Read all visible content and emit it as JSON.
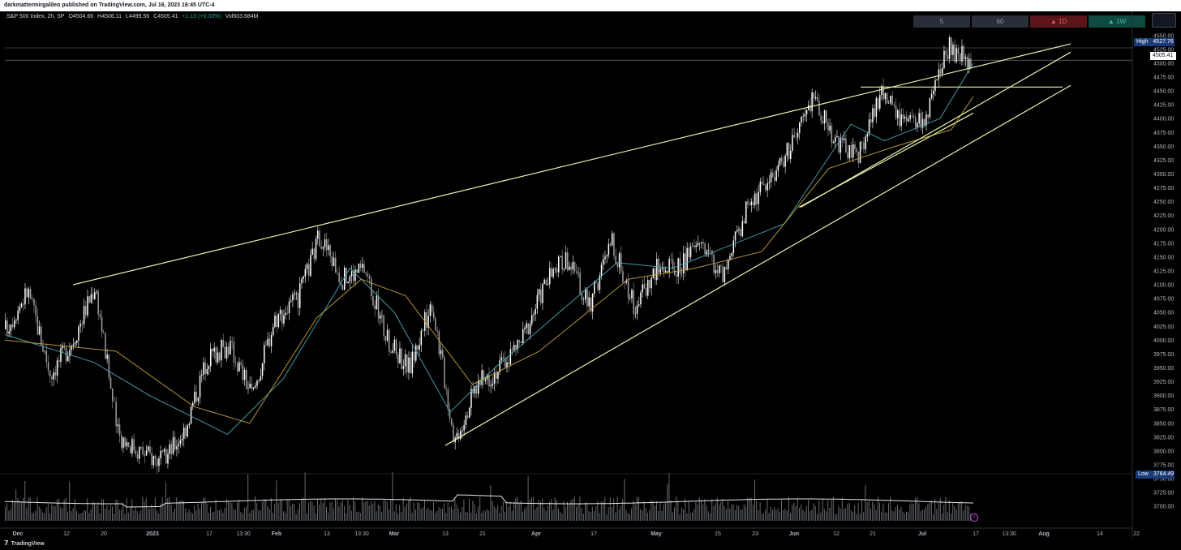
{
  "publisher_line": "darkmattermirgalileo published on TradingView.com, Jul 16, 2023 16:45 UTC-4",
  "legend": {
    "symbol": "S&P 500 Index, 2h, SP",
    "open": "O4504.66",
    "high": "H4506.11",
    "low": "L4499.56",
    "close": "C4505.41",
    "change": "+1.13 (+0.03%)",
    "volume": "Vol603.684M"
  },
  "timeframes": [
    {
      "label": "5"
    },
    {
      "label": "60"
    },
    {
      "label": "▲ 1D"
    },
    {
      "label": "▲ 1W"
    }
  ],
  "price_tags": {
    "high_label": "High",
    "high_value": "4527.76",
    "last_value": "4505.41",
    "low_label": "Low",
    "low_value": "3764.49"
  },
  "footer": {
    "logo_icon": "tradingview-logo-icon",
    "brand": "TradingView"
  },
  "colors": {
    "background": "#000000",
    "candle_up": "#ffffff",
    "candle_down": "#9e9e9e",
    "ema_fast": "#4aa8b8",
    "ema_slow": "#c9a33a",
    "trendline": "#e6f5a8",
    "volume": "#ffffff"
  },
  "chart_data": {
    "type": "candlestick",
    "title": "S&P 500 Index, 2h, SP",
    "ylim": [
      3690,
      4560
    ],
    "y_ticks": [
      4550,
      4525,
      4500,
      4475,
      4450,
      4425,
      4400,
      4375,
      4350,
      4325,
      4300,
      4275,
      4250,
      4225,
      4200,
      4175,
      4150,
      4125,
      4100,
      4075,
      4050,
      4025,
      4000,
      3975,
      3950,
      3925,
      3900,
      3875,
      3850,
      3825,
      3800,
      3775,
      3750,
      3725,
      3700
    ],
    "x_ticks": [
      "Dec",
      "12",
      "20",
      "2023",
      "17",
      "13:30",
      "Feb",
      "13",
      "13:30",
      "Mar",
      "13",
      "21",
      "Apr",
      "17",
      "May",
      "15",
      "23",
      "Jun",
      "12",
      "21",
      "Jul",
      "17",
      "13:30",
      "Aug",
      "14",
      "22"
    ],
    "path_points": [
      [
        "Dec",
        4020
      ],
      [
        "Dec 1",
        4090
      ],
      [
        "Dec 6",
        3940
      ],
      [
        "Dec 12",
        4000
      ],
      [
        "Dec 13",
        4100
      ],
      [
        "Dec 16",
        3830
      ],
      [
        "Dec 20",
        3800
      ],
      [
        "Dec 28",
        3780
      ],
      [
        "2023",
        3840
      ],
      [
        "Jan 10",
        3970
      ],
      [
        "Jan 13",
        3990
      ],
      [
        "Jan 17",
        3900
      ],
      [
        "Jan 23",
        4040
      ],
      [
        "Jan 27",
        4070
      ],
      [
        "Feb 2",
        4190
      ],
      [
        "Feb 6",
        4110
      ],
      [
        "Feb 13",
        4130
      ],
      [
        "Feb 23",
        4000
      ],
      [
        "Feb 28",
        3950
      ],
      [
        "Mar 6",
        4070
      ],
      [
        "Mar 13",
        3820
      ],
      [
        "Mar 17",
        3920
      ],
      [
        "Mar 21",
        3950
      ],
      [
        "Mar 28",
        4000
      ],
      [
        "Apr 5",
        4100
      ],
      [
        "Apr 17",
        4150
      ],
      [
        "Apr 25",
        4060
      ],
      [
        "May 2",
        4180
      ],
      [
        "May 4",
        4060
      ],
      [
        "May 10",
        4130
      ],
      [
        "May 15",
        4130
      ],
      [
        "May 19",
        4180
      ],
      [
        "May 24",
        4110
      ],
      [
        "Jun 1",
        4240
      ],
      [
        "Jun 6",
        4290
      ],
      [
        "Jun 12",
        4350
      ],
      [
        "Jun 16",
        4440
      ],
      [
        "Jun 22",
        4360
      ],
      [
        "Jun 26",
        4330
      ],
      [
        "Jun 30",
        4450
      ],
      [
        "Jul 6",
        4390
      ],
      [
        "Jul 10",
        4400
      ],
      [
        "Jul 14",
        4527.76
      ],
      [
        "Jul 14 close",
        4505.41
      ]
    ],
    "ema_fast_points": [
      [
        0,
        4010
      ],
      [
        8,
        3960
      ],
      [
        13,
        3900
      ],
      [
        20,
        3830
      ],
      [
        25,
        3930
      ],
      [
        31,
        4130
      ],
      [
        35,
        4050
      ],
      [
        40,
        3870
      ],
      [
        44,
        3950
      ],
      [
        55,
        4140
      ],
      [
        60,
        4130
      ],
      [
        70,
        4210
      ],
      [
        76,
        4390
      ],
      [
        79,
        4360
      ],
      [
        84,
        4400
      ],
      [
        87,
        4500
      ]
    ],
    "ema_slow_points": [
      [
        0,
        4000
      ],
      [
        10,
        3980
      ],
      [
        17,
        3880
      ],
      [
        22,
        3850
      ],
      [
        28,
        4040
      ],
      [
        32,
        4110
      ],
      [
        36,
        4080
      ],
      [
        42,
        3920
      ],
      [
        48,
        3980
      ],
      [
        56,
        4110
      ],
      [
        62,
        4130
      ],
      [
        68,
        4160
      ],
      [
        74,
        4310
      ],
      [
        80,
        4350
      ],
      [
        85,
        4380
      ],
      [
        87,
        4440
      ]
    ],
    "trendlines": [
      {
        "from": [
          "Dec 13",
          4100
        ],
        "to": [
          "Aug 2",
          4535
        ]
      },
      {
        "from": [
          "Mar 13",
          3810
        ],
        "to": [
          "Aug 2",
          4460
        ]
      },
      {
        "from": [
          "Jun 2",
          4240
        ],
        "to": [
          "Jul 7",
          4410
        ]
      },
      {
        "from": [
          "Jun 3",
          4240
        ],
        "to": [
          "Aug 2",
          4520
        ]
      },
      {
        "from": [
          "Jun 16",
          4457
        ],
        "to": [
          "Aug 1",
          4457
        ]
      }
    ],
    "high": 4527.76,
    "last": 4505.41,
    "low": 3764.49,
    "grid": false,
    "legend": "top-left"
  }
}
